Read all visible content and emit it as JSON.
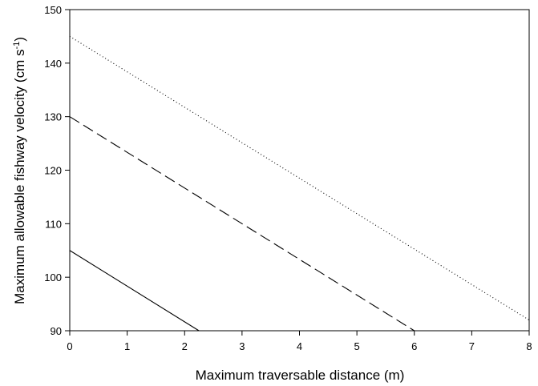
{
  "chart_data": {
    "type": "line",
    "xlabel": "Maximum traversable distance (m)",
    "ylabel": {
      "main": "Maximum allowable fishway velocity (cm s",
      "superscript": "-1",
      "close": ")"
    },
    "xlim": [
      0,
      8
    ],
    "ylim": [
      90,
      150
    ],
    "xticks": [
      0,
      1,
      2,
      3,
      4,
      5,
      6,
      7,
      8
    ],
    "yticks": [
      90,
      100,
      110,
      120,
      130,
      140,
      150
    ],
    "grid": false,
    "series": [
      {
        "line_style": "solid",
        "color": "#000000",
        "x": [
          0,
          2.25
        ],
        "y": [
          105,
          90
        ]
      },
      {
        "line_style": "dashed",
        "color": "#000000",
        "x": [
          0,
          6
        ],
        "y": [
          130,
          90
        ]
      },
      {
        "line_style": "dotted",
        "color": "#000000",
        "x": [
          0,
          8
        ],
        "y": [
          145,
          92
        ]
      }
    ]
  }
}
